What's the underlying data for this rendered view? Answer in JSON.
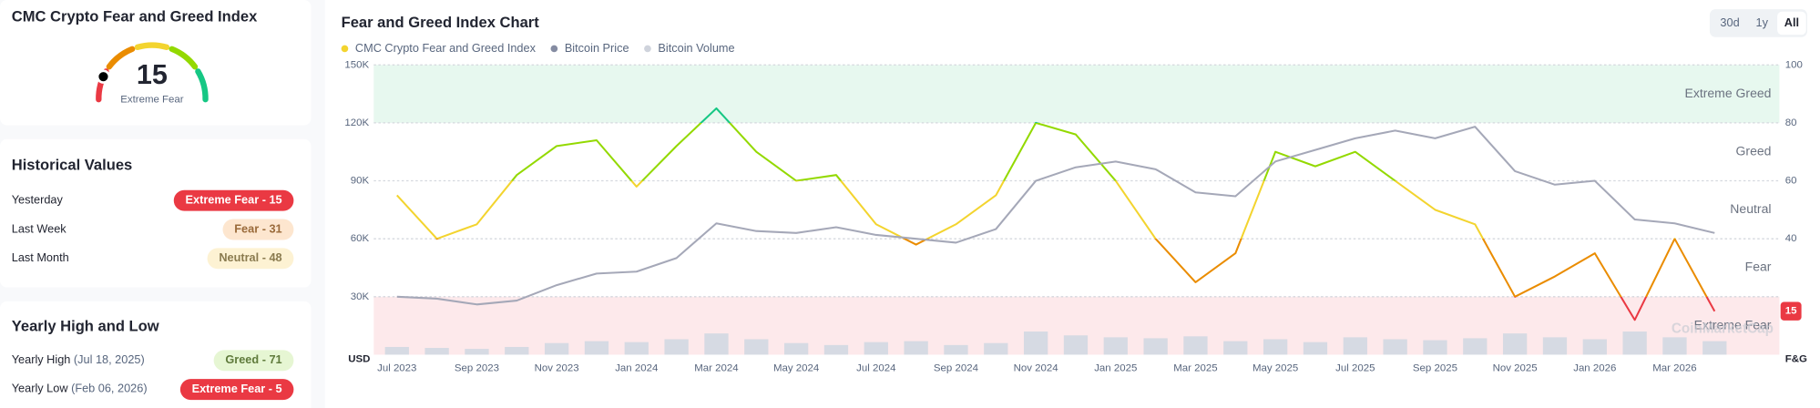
{
  "sidebar": {
    "index_card": {
      "title": "CMC Crypto Fear and Greed Index",
      "value": 15,
      "label": "Extreme Fear"
    },
    "historical": {
      "title": "Historical Values",
      "rows": [
        {
          "label": "Yesterday",
          "badge": "Extreme Fear - 15",
          "color": "#ea3943",
          "text_color": "#ffffff"
        },
        {
          "label": "Last Week",
          "badge": "Fear - 31",
          "color": "#fde6cf",
          "text_color": "#9a6a3a"
        },
        {
          "label": "Last Month",
          "badge": "Neutral - 48",
          "color": "#fdf2d3",
          "text_color": "#8a7b4f"
        }
      ]
    },
    "yearly": {
      "title": "Yearly High and Low",
      "rows": [
        {
          "label": "Yearly High",
          "date": "(Jul 18, 2025)",
          "badge": "Greed - 71",
          "color": "#e6f6d3",
          "text_color": "#5f7a3b"
        },
        {
          "label": "Yearly Low",
          "date": "(Feb 06, 2026)",
          "badge": "Extreme Fear - 5",
          "color": "#ea3943",
          "text_color": "#ffffff"
        }
      ]
    }
  },
  "chart_data": {
    "type": "line",
    "title": "Fear and Greed Index Chart",
    "buttons": [
      "30d",
      "1y",
      "All"
    ],
    "active_button": 2,
    "x": [
      "Jul 2023",
      "Aug 2023",
      "Sep 2023",
      "Oct 2023",
      "Nov 2023",
      "Dec 2023",
      "Jan 2024",
      "Feb 2024",
      "Mar 2024",
      "Apr 2024",
      "May 2024",
      "Jun 2024",
      "Jul 2024",
      "Aug 2024",
      "Sep 2024",
      "Oct 2024",
      "Nov 2024",
      "Dec 2024",
      "Jan 2025",
      "Feb 2025",
      "Mar 2025",
      "Apr 2025",
      "May 2025",
      "Jun 2025",
      "Jul 2025",
      "Aug 2025",
      "Sep 2025",
      "Oct 2025",
      "Nov 2025",
      "Dec 2025",
      "Jan 2026",
      "Feb 2026",
      "Mar 2026",
      "Apr 2026"
    ],
    "xticks": [
      "Jul 2023",
      "Sep 2023",
      "Nov 2023",
      "Jan 2024",
      "Mar 2024",
      "May 2024",
      "Jul 2024",
      "Sep 2024",
      "Nov 2024",
      "Jan 2025",
      "Mar 2025",
      "May 2025",
      "Jul 2025",
      "Sep 2025",
      "Nov 2025",
      "Jan 2026",
      "Mar 2026"
    ],
    "series": [
      {
        "name": "CMC Crypto Fear and Greed Index",
        "color": "#f3d42f",
        "axis": "y2",
        "color_by_zone": true,
        "values": [
          55,
          40,
          45,
          62,
          72,
          74,
          58,
          72,
          85,
          70,
          60,
          62,
          45,
          38,
          45,
          55,
          80,
          76,
          60,
          40,
          25,
          35,
          70,
          65,
          70,
          60,
          50,
          45,
          20,
          27,
          35,
          12,
          40,
          15
        ]
      },
      {
        "name": "Bitcoin Price",
        "color": "#a5a8b8",
        "legend_color": "#858ca2",
        "values": [
          30000,
          29000,
          26000,
          28000,
          36000,
          42000,
          43000,
          50000,
          68000,
          64000,
          63000,
          66000,
          62000,
          60000,
          58000,
          65000,
          90000,
          97000,
          100000,
          96000,
          84000,
          82000,
          100000,
          106000,
          112000,
          116000,
          112000,
          118000,
          95000,
          88000,
          90000,
          70000,
          68000,
          63000
        ]
      },
      {
        "name": "Bitcoin Volume",
        "type": "bar",
        "color": "#d6dae3",
        "legend_color": "#cfd3dc",
        "values": [
          4000,
          3500,
          3000,
          4000,
          6000,
          7000,
          6500,
          8000,
          11000,
          8000,
          6000,
          5000,
          6500,
          7000,
          5000,
          6000,
          12000,
          10000,
          9000,
          8500,
          9500,
          7000,
          8000,
          6500,
          9000,
          8000,
          7500,
          8500,
          11000,
          9000,
          8000,
          12000,
          9000,
          7000
        ]
      }
    ],
    "ylim": [
      0,
      150000
    ],
    "yticks": [
      {
        "value": 30000,
        "label": "30K"
      },
      {
        "value": 60000,
        "label": "60K"
      },
      {
        "value": 90000,
        "label": "90K"
      },
      {
        "value": 120000,
        "label": "120K"
      },
      {
        "value": 150000,
        "label": "150K"
      }
    ],
    "y_label": "USD",
    "y2lim": [
      0,
      100
    ],
    "y2ticks": [
      40,
      60,
      80,
      100
    ],
    "y2_label": "F&G",
    "grid": true,
    "zones": [
      {
        "name": "Extreme Fear",
        "from": 0,
        "to": 20,
        "color": "#ea3943",
        "band": "#fde9eb"
      },
      {
        "name": "Fear",
        "from": 20,
        "to": 40,
        "color": "#ea8c00"
      },
      {
        "name": "Neutral",
        "from": 40,
        "to": 60,
        "color": "#f3d42f"
      },
      {
        "name": "Greed",
        "from": 60,
        "to": 80,
        "color": "#93d900"
      },
      {
        "name": "Extreme Greed",
        "from": 80,
        "to": 100,
        "color": "#16c784",
        "band": "#e7f8ef"
      }
    ],
    "watermark": "CoinMarketCap"
  }
}
